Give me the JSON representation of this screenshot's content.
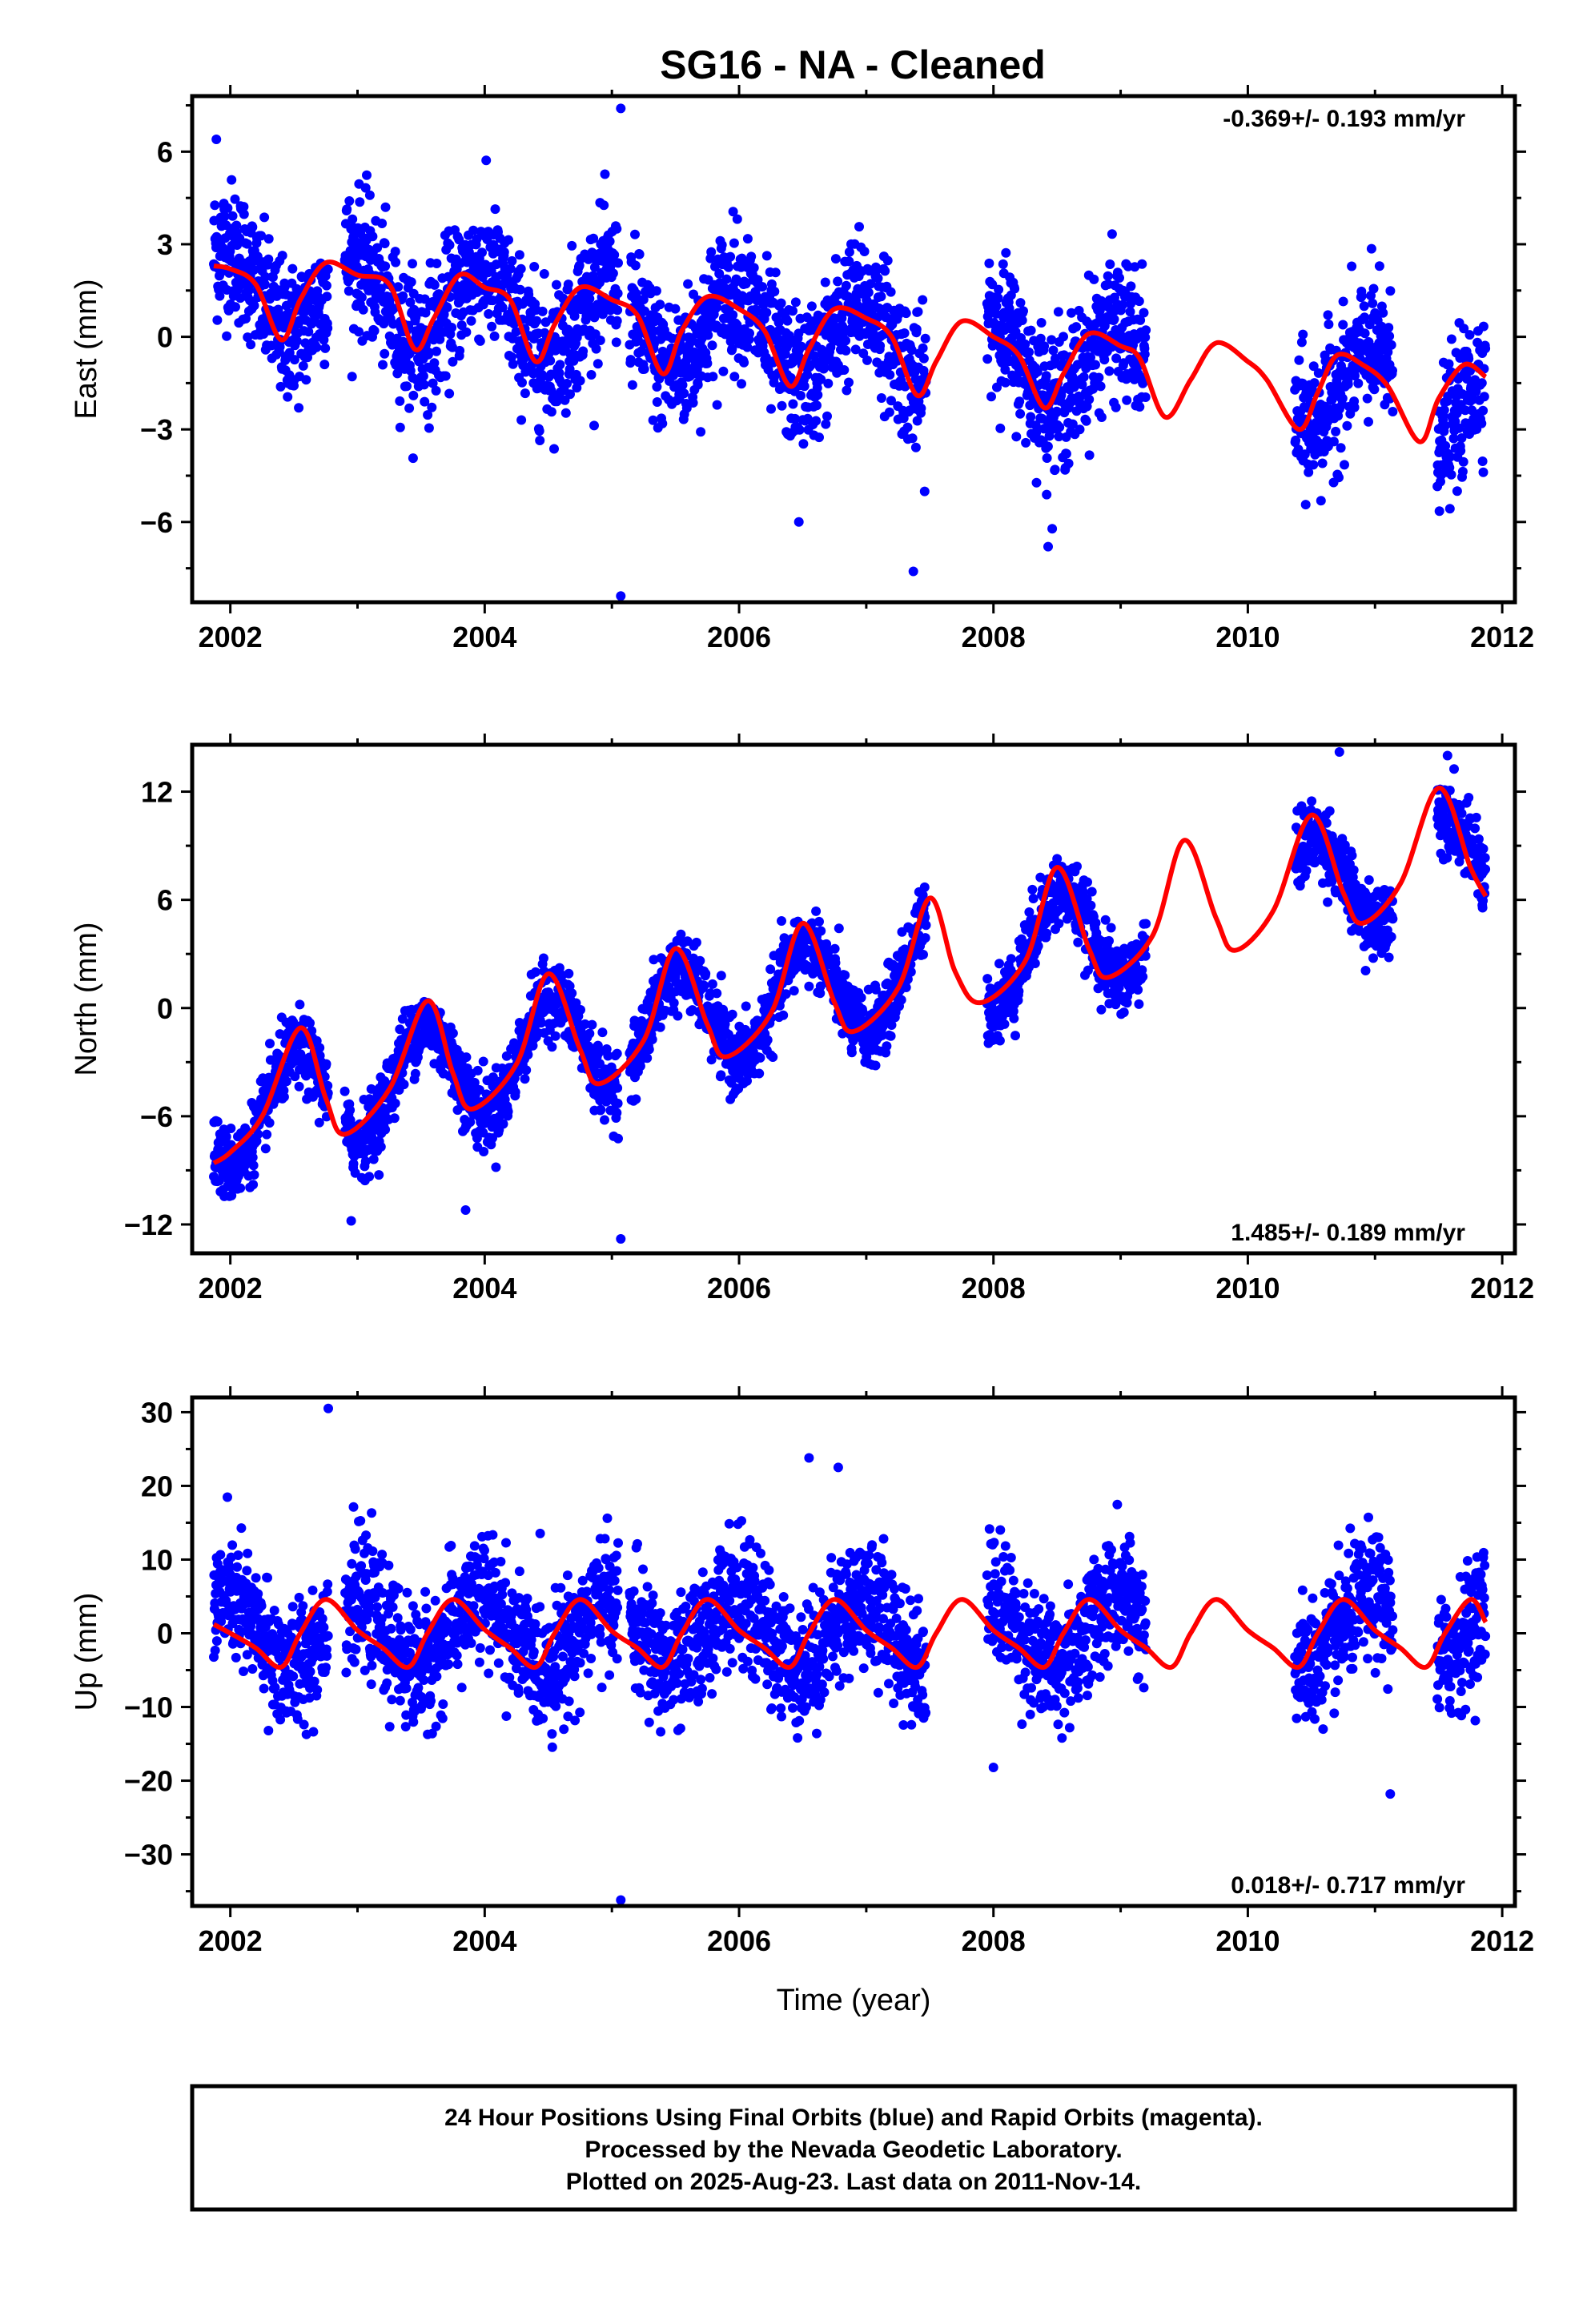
{
  "title": "SG16  - NA - Cleaned",
  "colors": {
    "points": "#0000ff",
    "model": "#ff0000",
    "frame": "#000000"
  },
  "footer": {
    "line1": "24 Hour Positions Using Final Orbits (blue) and Rapid Orbits (magenta).",
    "line2": "Processed by the Nevada Geodetic Laboratory.",
    "line3": "Plotted on 2025-Aug-23. Last data on 2011-Nov-14."
  },
  "chart_data": [
    {
      "type": "scatter",
      "name": "east",
      "ylabel": "East (mm)",
      "xlabel": "",
      "rate": "-0.369+/- 0.193 mm/yr",
      "rate_position": "top-right",
      "xlim": [
        2001.7,
        2012.1
      ],
      "ylim": [
        -8.6,
        7.8
      ],
      "xticks": [
        2002,
        2004,
        2006,
        2008,
        2010,
        2012
      ],
      "xtick_labels": [
        "2002",
        "2004",
        "2006",
        "2008",
        "2010",
        "2012"
      ],
      "yticks": [
        -6,
        -3,
        0,
        3,
        6
      ],
      "ytick_labels": [
        "−6",
        "−3",
        "0",
        "3",
        "6"
      ],
      "data_spans": [
        [
          2001.87,
          2002.77
        ],
        [
          2002.9,
          2005.05
        ],
        [
          2005.14,
          2007.47
        ],
        [
          2007.95,
          2009.2
        ],
        [
          2010.37,
          2011.14
        ],
        [
          2011.49,
          2011.87
        ]
      ],
      "trend": {
        "y2002": 1.6,
        "rate": -0.369,
        "ampl": 1.3,
        "phase": 0.72
      },
      "noise": 1.1,
      "outliers": [
        [
          2005.07,
          7.4
        ],
        [
          2005.07,
          -8.4
        ],
        [
          2007.37,
          -7.6
        ],
        [
          2006.47,
          -6.0
        ],
        [
          2008.43,
          -6.8
        ],
        [
          2001.89,
          6.4
        ]
      ],
      "model": [
        [
          2001.87,
          2.3
        ],
        [
          2002.0,
          2.2
        ],
        [
          2002.2,
          1.7
        ],
        [
          2002.4,
          -0.1
        ],
        [
          2002.55,
          1.2
        ],
        [
          2002.75,
          2.4
        ],
        [
          2003.0,
          2.0
        ],
        [
          2003.25,
          1.7
        ],
        [
          2003.45,
          -0.4
        ],
        [
          2003.6,
          0.6
        ],
        [
          2003.8,
          2.0
        ],
        [
          2004.0,
          1.6
        ],
        [
          2004.2,
          1.2
        ],
        [
          2004.4,
          -0.8
        ],
        [
          2004.55,
          0.4
        ],
        [
          2004.75,
          1.6
        ],
        [
          2005.0,
          1.2
        ],
        [
          2005.2,
          0.7
        ],
        [
          2005.4,
          -1.2
        ],
        [
          2005.55,
          0.2
        ],
        [
          2005.75,
          1.3
        ],
        [
          2006.0,
          0.9
        ],
        [
          2006.2,
          0.2
        ],
        [
          2006.4,
          -1.6
        ],
        [
          2006.55,
          -0.4
        ],
        [
          2006.75,
          0.9
        ],
        [
          2007.0,
          0.6
        ],
        [
          2007.2,
          0.0
        ],
        [
          2007.4,
          -1.9
        ],
        [
          2007.55,
          -0.8
        ],
        [
          2007.75,
          0.5
        ],
        [
          2008.0,
          0.0
        ],
        [
          2008.2,
          -0.6
        ],
        [
          2008.4,
          -2.3
        ],
        [
          2008.55,
          -1.2
        ],
        [
          2008.75,
          0.1
        ],
        [
          2009.0,
          -0.3
        ],
        [
          2009.15,
          -0.7
        ],
        [
          2009.35,
          -2.6
        ],
        [
          2009.55,
          -1.4
        ],
        [
          2009.75,
          -0.2
        ],
        [
          2010.0,
          -0.8
        ],
        [
          2010.15,
          -1.4
        ],
        [
          2010.4,
          -3.0
        ],
        [
          2010.55,
          -1.8
        ],
        [
          2010.7,
          -0.6
        ],
        [
          2010.9,
          -0.9
        ],
        [
          2011.1,
          -1.6
        ],
        [
          2011.35,
          -3.4
        ],
        [
          2011.5,
          -2.0
        ],
        [
          2011.7,
          -0.9
        ],
        [
          2011.87,
          -1.3
        ]
      ]
    },
    {
      "type": "scatter",
      "name": "north",
      "ylabel": "North (mm)",
      "xlabel": "",
      "rate": "1.485+/- 0.189 mm/yr",
      "rate_position": "bottom-right",
      "xlim": [
        2001.7,
        2012.1
      ],
      "ylim": [
        -13.6,
        14.6
      ],
      "xticks": [
        2002,
        2004,
        2006,
        2008,
        2010,
        2012
      ],
      "xtick_labels": [
        "2002",
        "2004",
        "2006",
        "2008",
        "2010",
        "2012"
      ],
      "yticks": [
        -12,
        -6,
        0,
        6,
        12
      ],
      "ytick_labels": [
        "−12",
        "−6",
        "0",
        "6",
        "12"
      ],
      "data_spans": [
        [
          2001.87,
          2002.77
        ],
        [
          2002.9,
          2005.05
        ],
        [
          2005.14,
          2007.47
        ],
        [
          2007.95,
          2009.2
        ],
        [
          2010.37,
          2011.14
        ],
        [
          2011.49,
          2011.87
        ]
      ],
      "trend": {
        "y2002": -6.0,
        "rate": 1.485,
        "ampl": 2.8,
        "phase": 0.27
      },
      "noise": 1.0,
      "outliers": [
        [
          2005.07,
          -12.8
        ],
        [
          2002.95,
          -11.8
        ],
        [
          2003.85,
          -11.2
        ],
        [
          2010.72,
          14.2
        ],
        [
          2011.57,
          14.0
        ]
      ],
      "model": [
        [
          2001.87,
          -8.6
        ],
        [
          2002.0,
          -8.0
        ],
        [
          2002.25,
          -6.0
        ],
        [
          2002.55,
          -1.1
        ],
        [
          2002.75,
          -5.0
        ],
        [
          2002.9,
          -7.0
        ],
        [
          2003.25,
          -4.5
        ],
        [
          2003.55,
          0.4
        ],
        [
          2003.75,
          -3.6
        ],
        [
          2003.9,
          -5.6
        ],
        [
          2004.25,
          -3.1
        ],
        [
          2004.5,
          1.9
        ],
        [
          2004.75,
          -2.3
        ],
        [
          2004.9,
          -4.2
        ],
        [
          2005.25,
          -1.8
        ],
        [
          2005.5,
          3.3
        ],
        [
          2005.75,
          -0.9
        ],
        [
          2005.9,
          -2.7
        ],
        [
          2006.25,
          -0.3
        ],
        [
          2006.5,
          4.7
        ],
        [
          2006.75,
          0.3
        ],
        [
          2006.9,
          -1.3
        ],
        [
          2007.25,
          1.1
        ],
        [
          2007.5,
          6.1
        ],
        [
          2007.7,
          2.0
        ],
        [
          2007.9,
          0.3
        ],
        [
          2008.25,
          2.6
        ],
        [
          2008.5,
          7.8
        ],
        [
          2008.75,
          3.3
        ],
        [
          2008.9,
          1.7
        ],
        [
          2009.25,
          4.0
        ],
        [
          2009.5,
          9.3
        ],
        [
          2009.75,
          5.0
        ],
        [
          2009.9,
          3.2
        ],
        [
          2010.2,
          5.4
        ],
        [
          2010.5,
          10.7
        ],
        [
          2010.75,
          6.4
        ],
        [
          2010.9,
          4.7
        ],
        [
          2011.2,
          6.9
        ],
        [
          2011.5,
          12.2
        ],
        [
          2011.75,
          7.8
        ],
        [
          2011.87,
          6.2
        ]
      ]
    },
    {
      "type": "scatter",
      "name": "up",
      "ylabel": "Up (mm)",
      "xlabel": "Time (year)",
      "rate": "0.018+/- 0.717 mm/yr",
      "rate_position": "bottom-right",
      "xlim": [
        2001.7,
        2012.1
      ],
      "ylim": [
        -37.0,
        32.0
      ],
      "xticks": [
        2002,
        2004,
        2006,
        2008,
        2010,
        2012
      ],
      "xtick_labels": [
        "2002",
        "2004",
        "2006",
        "2008",
        "2010",
        "2012"
      ],
      "yticks": [
        -30,
        -20,
        -10,
        0,
        10,
        20,
        30
      ],
      "ytick_labels": [
        "−30",
        "−20",
        "−10",
        "0",
        "10",
        "20",
        "30"
      ],
      "data_spans": [
        [
          2001.87,
          2002.77
        ],
        [
          2002.9,
          2005.05
        ],
        [
          2005.14,
          2007.47
        ],
        [
          2007.95,
          2009.2
        ],
        [
          2010.37,
          2011.14
        ],
        [
          2011.49,
          2011.87
        ]
      ],
      "trend": {
        "y2002": 0.0,
        "rate": 0.018,
        "ampl": 4.6,
        "phase": 0.72
      },
      "noise": 4.2,
      "outliers": [
        [
          2002.77,
          30.5
        ],
        [
          2006.55,
          23.8
        ],
        [
          2006.78,
          22.5
        ],
        [
          2005.07,
          -36.2
        ],
        [
          2011.12,
          -21.8
        ],
        [
          2008.0,
          -18.2
        ],
        [
          2002.3,
          -13.2
        ]
      ],
      "model": [
        [
          2001.87,
          1.2
        ],
        [
          2002.0,
          0.0
        ],
        [
          2002.2,
          -2.0
        ],
        [
          2002.4,
          -4.6
        ],
        [
          2002.55,
          0.0
        ],
        [
          2002.75,
          4.6
        ],
        [
          2003.0,
          0.4
        ],
        [
          2003.2,
          -2.0
        ],
        [
          2003.4,
          -4.6
        ],
        [
          2003.55,
          0.0
        ],
        [
          2003.75,
          4.6
        ],
        [
          2004.0,
          0.5
        ],
        [
          2004.2,
          -2.0
        ],
        [
          2004.4,
          -4.6
        ],
        [
          2004.55,
          0.0
        ],
        [
          2004.75,
          4.6
        ],
        [
          2005.0,
          0.3
        ],
        [
          2005.2,
          -2.0
        ],
        [
          2005.4,
          -4.6
        ],
        [
          2005.55,
          0.0
        ],
        [
          2005.75,
          4.6
        ],
        [
          2006.0,
          0.4
        ],
        [
          2006.2,
          -2.0
        ],
        [
          2006.4,
          -4.6
        ],
        [
          2006.55,
          0.0
        ],
        [
          2006.75,
          4.6
        ],
        [
          2007.0,
          0.4
        ],
        [
          2007.2,
          -2.0
        ],
        [
          2007.4,
          -4.6
        ],
        [
          2007.55,
          0.0
        ],
        [
          2007.75,
          4.6
        ],
        [
          2008.0,
          0.4
        ],
        [
          2008.2,
          -2.0
        ],
        [
          2008.4,
          -4.6
        ],
        [
          2008.55,
          0.0
        ],
        [
          2008.75,
          4.6
        ],
        [
          2009.0,
          0.4
        ],
        [
          2009.2,
          -2.0
        ],
        [
          2009.4,
          -4.6
        ],
        [
          2009.55,
          0.0
        ],
        [
          2009.75,
          4.6
        ],
        [
          2010.0,
          0.4
        ],
        [
          2010.2,
          -2.0
        ],
        [
          2010.4,
          -4.6
        ],
        [
          2010.55,
          0.0
        ],
        [
          2010.75,
          4.6
        ],
        [
          2011.0,
          0.4
        ],
        [
          2011.2,
          -2.0
        ],
        [
          2011.4,
          -4.6
        ],
        [
          2011.55,
          0.0
        ],
        [
          2011.75,
          4.6
        ],
        [
          2011.87,
          1.5
        ]
      ]
    }
  ]
}
